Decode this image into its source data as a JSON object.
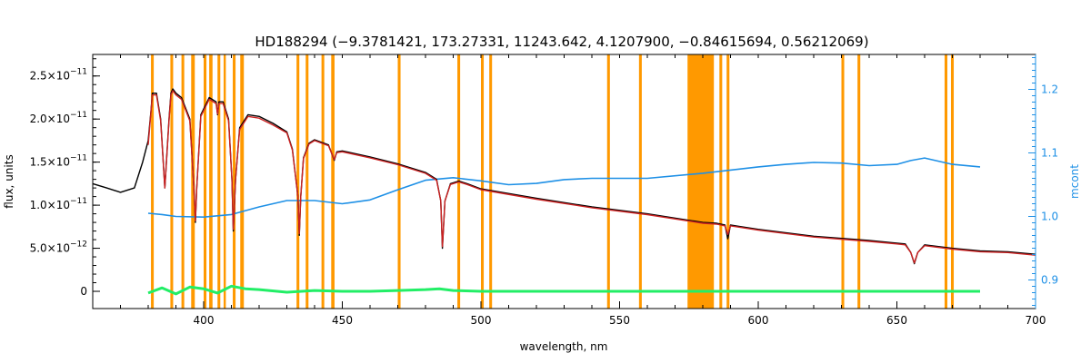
{
  "chart_data": {
    "type": "line",
    "title": "HD188294    (−9.3781421, 173.27331, 11243.642, 4.1207900, −0.84615694, 0.56212069)",
    "xlabel": "wavelength, nm",
    "ylabel": "flux, units",
    "y2label": "mcont",
    "xlim": [
      360,
      700
    ],
    "ylim": [
      -2e-12,
      2.75e-11
    ],
    "y2lim": [
      0.855,
      1.255
    ],
    "grid": false,
    "x_ticks": [
      400,
      450,
      500,
      550,
      600,
      650,
      700
    ],
    "x_tick_labels": [
      "400",
      "450",
      "500",
      "550",
      "600",
      "650",
      "700"
    ],
    "y_ticks": [
      0,
      5e-12,
      1e-11,
      1.5e-11,
      2e-11,
      2.5e-11
    ],
    "y_tick_labels": [
      {
        "mant": "0",
        "exp": ""
      },
      {
        "mant": "5.0×10",
        "exp": "−12"
      },
      {
        "mant": "1.0×10",
        "exp": "−11"
      },
      {
        "mant": "1.5×10",
        "exp": "−11"
      },
      {
        "mant": "2.0×10",
        "exp": "−11"
      },
      {
        "mant": "2.5×10",
        "exp": "−11"
      }
    ],
    "y2_ticks": [
      0.9,
      1.0,
      1.1,
      1.2
    ],
    "y2_tick_labels": [
      "0.9",
      "1.0",
      "1.1",
      "1.2"
    ],
    "colors": {
      "observed": "#000000",
      "model": "#cc2222",
      "mcont": "#1e90e6",
      "residual": "#22ee66",
      "masks": "#ff9900",
      "right_axis": "#1e90e6"
    },
    "series": [
      {
        "key": "observed",
        "x": [
          360,
          365,
          370,
          375,
          378,
          380,
          381,
          381.5,
          383,
          384.5,
          386,
          387.5,
          388.2,
          388.9,
          390,
          392,
          395,
          396.5,
          397,
          397.5,
          399,
          402,
          404.5,
          405,
          405.5,
          407,
          409,
          410.2,
          410.7,
          411.5,
          413,
          416,
          420,
          425,
          430,
          432,
          434,
          434.5,
          435,
          436,
          438,
          440,
          445,
          447.1,
          448,
          450,
          460,
          470,
          480,
          484,
          485.5,
          486.1,
          487,
          489,
          492,
          495,
          500,
          520,
          540,
          560,
          580,
          585,
          588,
          589,
          590,
          592,
          600,
          620,
          640,
          650,
          653,
          655,
          656.3,
          657.5,
          660,
          670,
          680,
          690,
          700
        ],
        "y": [
          1.25e-11,
          1.2e-11,
          1.15e-11,
          1.2e-11,
          1.5e-11,
          1.75e-11,
          2.1e-11,
          2.3e-11,
          2.3e-11,
          2e-11,
          1.2e-11,
          2e-11,
          2.3e-11,
          2.35e-11,
          2.3e-11,
          2.25e-11,
          2e-11,
          1.2e-11,
          8e-12,
          1.2e-11,
          2.05e-11,
          2.25e-11,
          2.2e-11,
          2.05e-11,
          2.2e-11,
          2.2e-11,
          2e-11,
          1.3e-11,
          7e-12,
          1.3e-11,
          1.9e-11,
          2.05e-11,
          2.03e-11,
          1.95e-11,
          1.85e-11,
          1.65e-11,
          1.1e-11,
          6.5e-12,
          1.1e-11,
          1.55e-11,
          1.72e-11,
          1.76e-11,
          1.7e-11,
          1.52e-11,
          1.62e-11,
          1.63e-11,
          1.56e-11,
          1.48e-11,
          1.38e-11,
          1.3e-11,
          1.05e-11,
          5e-12,
          1.05e-11,
          1.25e-11,
          1.28e-11,
          1.25e-11,
          1.19e-11,
          1.08e-11,
          9.8e-12,
          9e-12,
          8e-12,
          7.9e-12,
          7.7e-12,
          6.1e-12,
          7.7e-12,
          7.6e-12,
          7.2e-12,
          6.4e-12,
          5.9e-12,
          5.6e-12,
          5.5e-12,
          4.5e-12,
          3.2e-12,
          4.5e-12,
          5.4e-12,
          5e-12,
          4.7e-12,
          4.6e-12,
          4.3e-12
        ]
      },
      {
        "key": "model",
        "x": [
          380,
          381.5,
          383,
          384.5,
          386,
          387.5,
          388.2,
          388.9,
          390,
          392,
          395,
          396.5,
          397,
          397.5,
          399,
          402,
          404.5,
          405,
          405.5,
          407,
          409,
          410.2,
          410.7,
          411.5,
          413,
          416,
          420,
          425,
          430,
          432,
          434,
          434.5,
          435,
          436,
          438,
          440,
          445,
          447.1,
          448,
          450,
          460,
          470,
          480,
          484,
          485.5,
          486.1,
          487,
          489,
          492,
          495,
          500,
          520,
          540,
          560,
          580,
          585,
          588,
          589,
          590,
          592,
          600,
          620,
          640,
          650,
          653,
          655,
          656.3,
          657.5,
          660,
          670,
          680,
          690,
          700
        ],
        "y": [
          1.7e-11,
          2.28e-11,
          2.28e-11,
          1.98e-11,
          1.2e-11,
          1.98e-11,
          2.28e-11,
          2.33e-11,
          2.28e-11,
          2.23e-11,
          1.98e-11,
          1.2e-11,
          8.2e-12,
          1.2e-11,
          2.03e-11,
          2.23e-11,
          2.18e-11,
          2.06e-11,
          2.18e-11,
          2.18e-11,
          1.98e-11,
          1.3e-11,
          7.2e-12,
          1.3e-11,
          1.88e-11,
          2.03e-11,
          2.01e-11,
          1.93e-11,
          1.84e-11,
          1.64e-11,
          1.1e-11,
          6.7e-12,
          1.1e-11,
          1.54e-11,
          1.71e-11,
          1.75e-11,
          1.69e-11,
          1.53e-11,
          1.61e-11,
          1.62e-11,
          1.55e-11,
          1.47e-11,
          1.37e-11,
          1.29e-11,
          1.05e-11,
          5.2e-12,
          1.05e-11,
          1.24e-11,
          1.27e-11,
          1.24e-11,
          1.18e-11,
          1.07e-11,
          9.7e-12,
          8.9e-12,
          7.9e-12,
          7.8e-12,
          7.6e-12,
          6.6e-12,
          7.6e-12,
          7.5e-12,
          7.1e-12,
          6.3e-12,
          5.8e-12,
          5.5e-12,
          5.4e-12,
          4.5e-12,
          3.3e-12,
          4.5e-12,
          5.3e-12,
          4.9e-12,
          4.6e-12,
          4.5e-12,
          4.2e-12
        ]
      },
      {
        "key": "mcont",
        "axis": "right",
        "x": [
          380,
          385,
          390,
          400,
          410,
          420,
          430,
          440,
          450,
          460,
          470,
          480,
          490,
          500,
          510,
          520,
          530,
          540,
          560,
          580,
          600,
          610,
          620,
          630,
          640,
          650,
          655,
          660,
          670,
          680
        ],
        "y": [
          1.005,
          1.003,
          1.0,
          0.999,
          1.003,
          1.015,
          1.025,
          1.025,
          1.02,
          1.026,
          1.042,
          1.057,
          1.061,
          1.056,
          1.05,
          1.052,
          1.058,
          1.06,
          1.06,
          1.068,
          1.078,
          1.082,
          1.085,
          1.084,
          1.08,
          1.082,
          1.088,
          1.092,
          1.082,
          1.078
        ]
      },
      {
        "key": "residual",
        "x": [
          380,
          385,
          390,
          395,
          400,
          405,
          410,
          415,
          420,
          430,
          440,
          450,
          460,
          470,
          480,
          485,
          490,
          500,
          550,
          600,
          650,
          680
        ],
        "y": [
          -2e-13,
          4e-13,
          -3e-13,
          5e-13,
          3e-13,
          -2e-13,
          6e-13,
          3e-13,
          2e-13,
          -1e-13,
          1e-13,
          0,
          0,
          1e-13,
          2e-13,
          3e-13,
          1e-13,
          0,
          0,
          0,
          0,
          0
        ]
      }
    ],
    "masks": [
      [
        381,
        382
      ],
      [
        388,
        389
      ],
      [
        392,
        393
      ],
      [
        395.5,
        396.8
      ],
      [
        400,
        401
      ],
      [
        402,
        403.2
      ],
      [
        405,
        406
      ],
      [
        407.2,
        408
      ],
      [
        410.5,
        411.5
      ],
      [
        413.2,
        414.5
      ],
      [
        433.5,
        434.5
      ],
      [
        436.8,
        437.8
      ],
      [
        442.5,
        443.5
      ],
      [
        446,
        447.2
      ],
      [
        470,
        471
      ],
      [
        491.5,
        492.5
      ],
      [
        500,
        501
      ],
      [
        503,
        504
      ],
      [
        545.5,
        546.5
      ],
      [
        557,
        558
      ],
      [
        574.5,
        584
      ],
      [
        586,
        587
      ],
      [
        588.6,
        589.6
      ],
      [
        630,
        631
      ],
      [
        635.8,
        636.8
      ],
      [
        667.2,
        668.2
      ],
      [
        669.5,
        670.5
      ]
    ]
  }
}
